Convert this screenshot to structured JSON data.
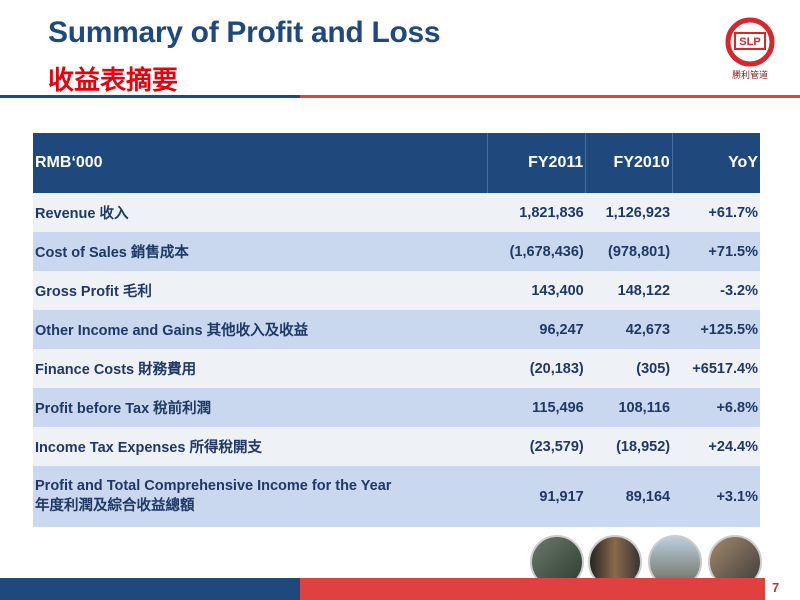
{
  "header": {
    "title": "Summary of Profit and Loss",
    "subtitle": "收益表摘要",
    "logo_mark": "SLP",
    "logo_name": "勝利管道"
  },
  "table": {
    "columns": [
      "RMB‘000",
      "FY2011",
      "FY2010",
      "YoY"
    ],
    "rows": [
      [
        "Revenue 收入",
        "1,821,836",
        "1,126,923",
        "+61.7%"
      ],
      [
        "Cost of Sales 銷售成本",
        "(1,678,436)",
        "(978,801)",
        "+71.5%"
      ],
      [
        "Gross Profit 毛利",
        "143,400",
        "148,122",
        "-3.2%"
      ],
      [
        "Other Income and Gains 其他收入及收益",
        "96,247",
        "42,673",
        "+125.5%"
      ],
      [
        "Finance Costs 財務費用",
        "(20,183)",
        "(305)",
        "+6517.4%"
      ],
      [
        "Profit before Tax 稅前利潤",
        "115,496",
        "108,116",
        "+6.8%"
      ],
      [
        "Income Tax Expenses 所得稅開支",
        "(23,579)",
        "(18,952)",
        "+24.4%"
      ],
      [
        "Profit and Total Comprehensive Income for the Year\n年度利潤及綜合收益總額",
        "91,917",
        "89,164",
        "+3.1%"
      ]
    ]
  },
  "footer": {
    "page_number": "7"
  }
}
